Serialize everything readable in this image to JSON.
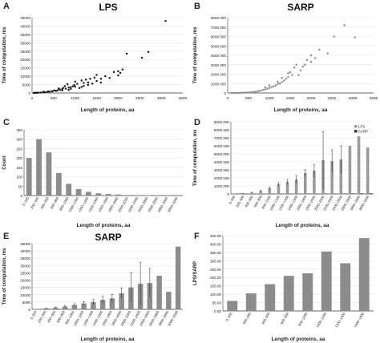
{
  "panel_labels": {
    "A": "A",
    "B": "B",
    "C": "C",
    "D": "D",
    "E": "E",
    "F": "F"
  },
  "chart_data": [
    {
      "id": "A",
      "type": "scatter",
      "title": "LPS",
      "xlabel": "Length of proteins, aa",
      "ylabel": "Time of computation, ms",
      "xlim": [
        0,
        3500
      ],
      "ylim": [
        0,
        45000
      ],
      "xticks": [
        "0",
        "500",
        "1000",
        "1500",
        "2000",
        "2500",
        "3000",
        "3500"
      ],
      "yticks": [
        "0",
        "5000",
        "10000",
        "15000",
        "20000",
        "25000",
        "30000",
        "35000",
        "40000",
        "45000"
      ],
      "marker_color": "#1a1a1a",
      "series": [
        {
          "name": "",
          "points": [
            [
              3100,
              43000
            ],
            [
              2700,
              24500
            ],
            [
              2550,
              21000
            ],
            [
              2200,
              23500
            ],
            [
              2100,
              14000
            ],
            [
              2050,
              12000
            ],
            [
              1900,
              12500
            ],
            [
              2000,
              10500
            ],
            [
              1700,
              10000
            ],
            [
              1500,
              10800
            ],
            [
              1450,
              9200
            ],
            [
              1600,
              8500
            ],
            [
              1350,
              8500
            ],
            [
              1250,
              8000
            ],
            [
              1300,
              6300
            ],
            [
              1200,
              6000
            ],
            [
              1150,
              7500
            ],
            [
              1050,
              5500
            ],
            [
              1000,
              6800
            ],
            [
              980,
              4800
            ],
            [
              950,
              4000
            ],
            [
              900,
              3500
            ],
            [
              850,
              3200
            ],
            [
              820,
              5200
            ],
            [
              780,
              2600
            ],
            [
              760,
              4100
            ],
            [
              700,
              2300
            ],
            [
              720,
              3000
            ],
            [
              650,
              2000
            ],
            [
              620,
              2700
            ],
            [
              600,
              1600
            ],
            [
              560,
              1300
            ],
            [
              520,
              1500
            ],
            [
              480,
              1100
            ],
            [
              450,
              900
            ],
            [
              400,
              700
            ],
            [
              380,
              1000
            ],
            [
              350,
              600
            ],
            [
              300,
              450
            ],
            [
              270,
              700
            ],
            [
              250,
              350
            ],
            [
              200,
              250
            ],
            [
              150,
              150
            ],
            [
              120,
              200
            ],
            [
              100,
              100
            ],
            [
              80,
              60
            ],
            [
              60,
              40
            ],
            [
              40,
              30
            ],
            [
              1100,
              3000
            ],
            [
              1200,
              4200
            ],
            [
              1400,
              5600
            ],
            [
              1600,
              6200
            ],
            [
              1800,
              9000
            ],
            [
              900,
              2500
            ],
            [
              1000,
              3800
            ],
            [
              1300,
              4800
            ],
            [
              850,
              1800
            ],
            [
              700,
              1500
            ],
            [
              1500,
              7200
            ],
            [
              1150,
              3600
            ],
            [
              2000,
              13000
            ]
          ]
        }
      ]
    },
    {
      "id": "B",
      "type": "scatter",
      "title": "SARP",
      "xlabel": "Length of proteins, aa",
      "ylabel": "Time of computation, ms",
      "xlim": [
        0,
        3500
      ],
      "ylim": [
        0,
        8000000
      ],
      "xticks": [
        "0",
        "500",
        "1000",
        "1500",
        "2000",
        "2500",
        "3000",
        "3500"
      ],
      "yticks": [
        "0",
        "1000 000",
        "2000 000",
        "3000 000",
        "4000 000",
        "5000 000",
        "6000 000",
        "7000 000",
        "8000 000"
      ],
      "marker_color": "#8c8c8c",
      "series": [
        {
          "name": "",
          "points": [
            [
              2800,
              7200000
            ],
            [
              3050,
              5900000
            ],
            [
              2550,
              6000000
            ],
            [
              2400,
              4200000
            ],
            [
              2200,
              4600000
            ],
            [
              2100,
              3700000
            ],
            [
              2000,
              3300000
            ],
            [
              1900,
              3500000
            ],
            [
              1800,
              2800000
            ],
            [
              1750,
              2400000
            ],
            [
              1600,
              2700000
            ],
            [
              1500,
              2200000
            ],
            [
              1550,
              1900000
            ],
            [
              1450,
              1700000
            ],
            [
              1400,
              1500000
            ],
            [
              1350,
              1300000
            ],
            [
              1300,
              1150000
            ],
            [
              1250,
              1000000
            ],
            [
              1200,
              950000
            ],
            [
              1150,
              800000
            ],
            [
              1100,
              700000
            ],
            [
              1050,
              620000
            ],
            [
              1000,
              530000
            ],
            [
              950,
              450000
            ],
            [
              900,
              380000
            ],
            [
              850,
              320000
            ],
            [
              800,
              260000
            ],
            [
              750,
              210000
            ],
            [
              700,
              170000
            ],
            [
              650,
              130000
            ],
            [
              600,
              100000
            ],
            [
              550,
              75000
            ],
            [
              500,
              55000
            ],
            [
              450,
              40000
            ],
            [
              400,
              30000
            ],
            [
              350,
              20000
            ],
            [
              300,
              12000
            ],
            [
              250,
              8000
            ],
            [
              200,
              5000
            ],
            [
              150,
              3000
            ],
            [
              100,
              1500
            ],
            [
              1450,
              2100000
            ],
            [
              1300,
              1600000
            ],
            [
              1650,
              3000000
            ],
            [
              1200,
              1200000
            ],
            [
              1000,
              800000
            ],
            [
              1850,
              3000000
            ],
            [
              2000,
              4000000
            ],
            [
              1700,
              1900000
            ],
            [
              900,
              600000
            ]
          ]
        }
      ]
    },
    {
      "id": "C",
      "type": "bar",
      "title": "",
      "xlabel": "Length of proteins, aa",
      "ylabel": "Count",
      "ylim": [
        0,
        350
      ],
      "yticks": [
        "0",
        "50",
        "100",
        "150",
        "200",
        "250",
        "300",
        "350"
      ],
      "bar_color": "#8c8c8c",
      "categories": [
        "0–200",
        "200–400",
        "400–600",
        "600–800",
        "800–1000",
        "1000–1200",
        "1200–1400",
        "1400–1600",
        "1600–1800",
        "1800–2000",
        "2000–2200",
        "2200–2400",
        "2400–2600",
        "2600–2800",
        "2800–3000",
        "3000–3200"
      ],
      "values": [
        200,
        300,
        230,
        120,
        62,
        35,
        20,
        12,
        8,
        6,
        3,
        2,
        2,
        1,
        1,
        1
      ]
    },
    {
      "id": "D",
      "type": "bar",
      "title": "",
      "xlabel": "Length of proteins, aa",
      "ylabel": "Time of computation, ms",
      "ylim": [
        0,
        9000000
      ],
      "yticks": [
        "0",
        "1000 000",
        "2000 000",
        "3000 000",
        "4000 000",
        "5000 000",
        "6000 000",
        "7000 000",
        "8000 000",
        "9000 000"
      ],
      "legend_position": "top-right",
      "categories": [
        "0–200",
        "200–400",
        "400–600",
        "600–800",
        "800–1000",
        "1000–1200",
        "1200–1400",
        "1400–1600",
        "1600–1800",
        "1800–2000",
        "2000–2200",
        "2200–2400",
        "2400–2600",
        "2600–2800",
        "2800–3000",
        "3000–3200"
      ],
      "series": [
        {
          "name": "LPS",
          "color": "#9a9a9a",
          "values": [
            20000,
            60000,
            150000,
            350000,
            700000,
            1200000,
            1500000,
            1800000,
            2600000,
            2900000,
            4200000,
            4100000,
            4300000,
            6000000,
            7200000,
            5800000
          ],
          "errors": [
            0,
            20000,
            50000,
            100000,
            150000,
            200000,
            300000,
            500000,
            400000,
            800000,
            3600000,
            1400000,
            1700000,
            0,
            0,
            0
          ]
        },
        {
          "name": "SARP",
          "color": "#3a3a3a",
          "values": [
            500,
            1500,
            3000,
            6000,
            10000,
            14000,
            18000,
            24000,
            30000,
            36000,
            52000,
            41000,
            45000,
            60000,
            72000,
            80000
          ],
          "errors": []
        }
      ]
    },
    {
      "id": "E",
      "type": "bar",
      "title": "SARP",
      "xlabel": "Length of proteins, aa",
      "ylabel": "Time of computation, ms",
      "ylim": [
        0,
        45000
      ],
      "yticks": [
        "0",
        "5000",
        "10000",
        "15000",
        "20000",
        "25000",
        "30000",
        "35000",
        "40000",
        "45000"
      ],
      "bar_color": "#8c8c8c",
      "categories": [
        "0–200",
        "200–400",
        "400–600",
        "600–800",
        "800–1000",
        "1000–1200",
        "1200–1400",
        "1400–1600",
        "1600–1800",
        "1800–2000",
        "2000–2200",
        "2200–2400",
        "2400–2600",
        "2600–2800",
        "2800–3000",
        "3000–3200"
      ],
      "values": [
        300,
        700,
        1200,
        2000,
        3000,
        4000,
        5000,
        6500,
        7500,
        11000,
        15000,
        17500,
        18000,
        23000,
        12000,
        43000
      ],
      "errors": [
        0,
        200,
        400,
        700,
        900,
        1300,
        1700,
        2400,
        2800,
        3600,
        10000,
        14500,
        10000,
        0,
        0,
        0
      ]
    },
    {
      "id": "F",
      "type": "bar",
      "title": "",
      "xlabel": "Length of proteins, aa",
      "ylabel": "LPS/SARP",
      "ylim": [
        0,
        450
      ],
      "yticks": [
        "0.00",
        "50.00",
        "100.00",
        "150.00",
        "200.00",
        "250.00",
        "300.00",
        "350.00",
        "400.00",
        "450.00"
      ],
      "bar_color": "#8c8c8c",
      "categories": [
        "0–200",
        "200–400",
        "400–600",
        "600–800",
        "800–1000",
        "1000–1200",
        "1200–1400",
        "1400–1600"
      ],
      "values": [
        60,
        105,
        160,
        210,
        225,
        355,
        285,
        435
      ]
    }
  ]
}
